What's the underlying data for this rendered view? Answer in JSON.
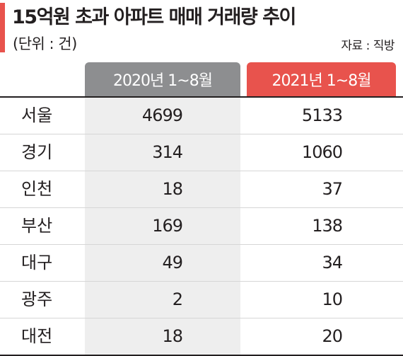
{
  "title": "15억원 초과 아파트 매매 거래량 추이",
  "unit": "(단위 : 건)",
  "source": "자료 : 직방",
  "colors": {
    "accent": "#e8534d",
    "header_2020": "#8d8e90",
    "header_2021": "#e8534d",
    "shade": "#eeeeee"
  },
  "chart_data": {
    "type": "table",
    "title": "15억원 초과 아파트 매매 거래량 추이",
    "columns": [
      "2020년 1~8월",
      "2021년 1~8월"
    ],
    "rows": [
      {
        "region": "서울",
        "values": [
          4699,
          5133
        ]
      },
      {
        "region": "경기",
        "values": [
          314,
          1060
        ]
      },
      {
        "region": "인천",
        "values": [
          18,
          37
        ]
      },
      {
        "region": "부산",
        "values": [
          169,
          138
        ]
      },
      {
        "region": "대구",
        "values": [
          49,
          34
        ]
      },
      {
        "region": "광주",
        "values": [
          2,
          10
        ]
      },
      {
        "region": "대전",
        "values": [
          18,
          20
        ]
      }
    ]
  }
}
